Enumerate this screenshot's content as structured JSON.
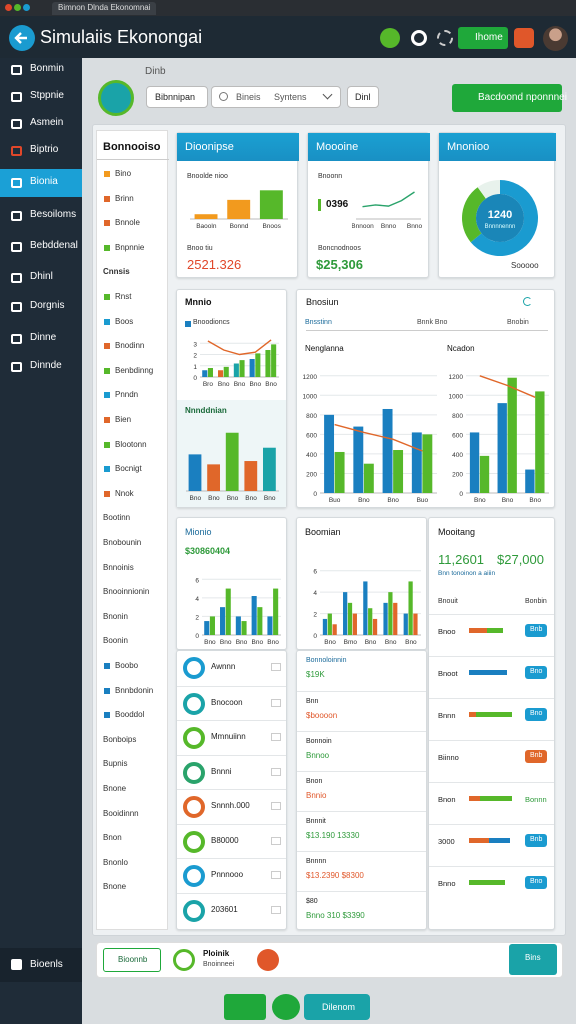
{
  "browser": {
    "tab": "Bimnon Dlnda Ekonomnai"
  },
  "header": {
    "title": "Simulaiis Ekonongai",
    "button": "Ihome"
  },
  "sidebar": {
    "items": [
      "Bonmin",
      "Stppnie",
      "Asmein",
      "Biptrio",
      "Bionia",
      "Besoiloms",
      "Bebddenal",
      "Dhinl",
      "Dorgnis",
      "Dinne",
      "Dinnde"
    ],
    "active_index": 4,
    "footer": "Bioenls"
  },
  "toolbar": {
    "caption": "Dinb",
    "tab": "Bibnnipan",
    "search": "Bineis",
    "select": "Syntens",
    "button": "Dinl",
    "action": "Bacdoond nponnnei"
  },
  "subnav": {
    "title": "Bonnooiso",
    "items": [
      "Bino",
      "Brinn",
      "Bnnole",
      "Bnpnnie",
      "Cnnsis",
      "Rnst",
      "Boos",
      "Bnodinn",
      "Benbdinng",
      "Pnndn",
      "Bien",
      "Blootonn",
      "Bocnigt",
      "Nnok",
      "Bootinn",
      "Bnobounin",
      "Bnnoinis",
      "Bnooinnionin",
      "Bnonin",
      "Boonin",
      "Boobo",
      "Bnnbdonin",
      "Booddol",
      "Bonboips",
      "Bupnis",
      "Bnone",
      "Booidinnn",
      "Bnon",
      "Bnonlo",
      "Bnone"
    ]
  },
  "kpi_cards": [
    {
      "title": "Dioonipse",
      "subtitle": "Bnoolde nioo",
      "chart": {
        "categories": [
          "Baooln",
          "Bonnd",
          "Bnoos"
        ],
        "series": [
          {
            "type": "bar",
            "colors": [
              "#f29a1e",
              "#f29a1e",
              "#56b82a"
            ],
            "values": [
              0.3,
              1.2,
              1.8
            ]
          }
        ]
      },
      "note": "Bnoo tiu",
      "value": "2521.326"
    },
    {
      "title": "Moooine",
      "subtitle": "Bnoonn",
      "figure": "0396",
      "chart": {
        "categories": [
          "Bnnoon",
          null,
          "Bnno",
          null,
          "Bnno"
        ],
        "series": [
          {
            "type": "line",
            "color": "#2aa36b",
            "values": [
              2,
              2.3,
              2.1,
              3,
              4.4
            ]
          }
        ]
      },
      "note": "Boncnodnoos",
      "value": "$25,306"
    },
    {
      "title": "Mnonioo",
      "donut": {
        "values": [
          64,
          26,
          10
        ],
        "colors": [
          "#1a9bd0",
          "#56b82a",
          "#e8f2ec"
        ]
      },
      "center": "1240",
      "center_note": "Bnnnnennn",
      "note": "Sooooo"
    }
  ],
  "mix_card": {
    "title": "Mnnio",
    "legend": "Bnoodioncs",
    "chart": {
      "ylim": [
        0,
        4
      ],
      "yticks": [
        0,
        1,
        2,
        3
      ],
      "categories": [
        "Bro",
        "Bno",
        "Bno",
        "Bno",
        "Bno"
      ],
      "series": [
        {
          "type": "bar",
          "colors": [
            "#1a7fc0",
            "#e0672a",
            "#1aa3a8",
            "#1a7fc0",
            "#56b82a"
          ],
          "values": [
            0.6,
            0.6,
            1.2,
            1.6,
            2.4
          ]
        },
        {
          "type": "bar",
          "color": "#56b82a",
          "values": [
            0.8,
            0.9,
            1.5,
            2.1,
            2.9
          ]
        },
        {
          "type": "line",
          "color": "#e0672a",
          "values": [
            3.2,
            2.4,
            2,
            2.2,
            3.3
          ]
        }
      ]
    },
    "title2": "Nnnddnian",
    "chart2": {
      "categories": [
        "Bno",
        "Bno",
        "Bno",
        "Bno",
        "Bno"
      ],
      "series": [
        {
          "type": "bar",
          "colors": [
            "#1a7fc0",
            "#e0672a",
            "#56b82a",
            "#e0672a",
            "#1aa3a8"
          ],
          "values": [
            2.2,
            1.6,
            3.5,
            1.8,
            2.6
          ]
        }
      ]
    }
  },
  "compare_card": {
    "title": "Bnosiun",
    "tabs": [
      "Bnsstinn",
      "Bnnk Bno",
      "Bnobin"
    ],
    "panels": [
      {
        "title": "Nenglanna",
        "chart": {
          "ylim": [
            0,
            1300
          ],
          "yticks": [
            0,
            200,
            400,
            600,
            800,
            1000,
            1200
          ],
          "categories": [
            "Buo",
            "Bno",
            "Bno",
            "Buo"
          ],
          "series": [
            {
              "type": "bar",
              "color": "#1a7fc0",
              "values": [
                800,
                680,
                860,
                620
              ]
            },
            {
              "type": "bar",
              "color": "#56b82a",
              "values": [
                420,
                300,
                440,
                600
              ]
            },
            {
              "type": "line",
              "color": "#e0672a",
              "values": [
                700,
                620,
                550,
                430
              ]
            }
          ]
        }
      },
      {
        "title": "Ncadon",
        "chart": {
          "ylim": [
            0,
            1300
          ],
          "yticks": [
            0,
            200,
            400,
            600,
            800,
            1000,
            1200
          ],
          "categories": [
            "Bno",
            "Bno",
            "Bno"
          ],
          "series": [
            {
              "type": "bar",
              "color": "#1a7fc0",
              "values": [
                620,
                920,
                240
              ]
            },
            {
              "type": "bar",
              "color": "#56b82a",
              "values": [
                380,
                1180,
                1040
              ]
            },
            {
              "type": "line",
              "color": "#e0672a",
              "values": [
                1200,
                1100,
                980
              ]
            }
          ]
        }
      }
    ]
  },
  "growth_card": {
    "title": "Mionio",
    "value": "$30860404",
    "chart": {
      "ylim": [
        0,
        7
      ],
      "yticks": [
        0,
        2,
        4,
        6
      ],
      "categories": [
        "Bno",
        "Bno",
        "Bno",
        "Bno",
        "Bno"
      ],
      "series": [
        {
          "type": "bar",
          "color": "#1a7fc0",
          "values": [
            1.5,
            3,
            2,
            4.2,
            2
          ]
        },
        {
          "type": "bar",
          "color": "#56b82a",
          "values": [
            2,
            5,
            1.5,
            3,
            5
          ]
        }
      ]
    }
  },
  "trend_card": {
    "title": "Boomian",
    "chart": {
      "ylim": [
        0,
        7
      ],
      "yticks": [
        0,
        2,
        4,
        6
      ],
      "categories": [
        "Bno",
        "Bmo",
        "Bno",
        "Bno",
        "Bno"
      ],
      "series": [
        {
          "type": "bar",
          "color": "#1a7fc0",
          "values": [
            1.5,
            4,
            5,
            3,
            2
          ]
        },
        {
          "type": "bar",
          "color": "#56b82a",
          "values": [
            2,
            3,
            2.5,
            4,
            5
          ]
        },
        {
          "type": "bar",
          "color": "#e0672a",
          "values": [
            1,
            2,
            1.5,
            3,
            2
          ]
        }
      ]
    }
  },
  "ledger": {
    "title": "Mooitang",
    "figure1": "11,2601",
    "figure2": "$27,000",
    "subtitle": "Bnn tonoinon a aiiin",
    "head": [
      "Bnouit",
      "Bonbin"
    ],
    "rows": [
      {
        "label": "Bnoo",
        "progress": [
          40,
          35
        ],
        "colors": [
          "#e0672a",
          "#56b82a"
        ],
        "badge": "Bnb",
        "badge_color": "#1a9bd0"
      },
      {
        "label": "Bnoot",
        "progress": [
          85
        ],
        "colors": [
          "#1a7fc0"
        ],
        "badge": "Bno",
        "badge_color": "#1a9bd0"
      },
      {
        "label": "Bnnn",
        "progress": [
          15,
          80
        ],
        "colors": [
          "#e0672a",
          "#56b82a"
        ],
        "badge": "Bno",
        "badge_color": "#1a9bd0"
      },
      {
        "label": "Biinno",
        "progress": [],
        "colors": [],
        "badge": "Bnb",
        "badge_color": "#e0672a"
      },
      {
        "label": "Bnon",
        "progress": [
          25,
          70
        ],
        "colors": [
          "#e0672a",
          "#56b82a"
        ],
        "amount": "Bonnn"
      },
      {
        "label": "3000",
        "progress": [
          45,
          45
        ],
        "colors": [
          "#e0672a",
          "#1a7fc0"
        ],
        "badge": "Bnb",
        "badge_color": "#1a9bd0"
      },
      {
        "label": "Bnno",
        "progress": [
          80
        ],
        "colors": [
          "#56b82a"
        ],
        "badge": "Bno",
        "badge_color": "#1a9bd0"
      }
    ]
  },
  "accounts": {
    "items": [
      {
        "label": "Awnnn",
        "color": "#1a9bd0"
      },
      {
        "label": "Bnocoon",
        "color": "#1aa3a8"
      },
      {
        "label": "Mmnuiinn",
        "color": "#56b82a"
      },
      {
        "label": "Bnnni",
        "color": "#2aa36b"
      },
      {
        "label": "Snnnh.000",
        "color": "#e0672a"
      },
      {
        "label": "B80000",
        "color": "#56b82a"
      },
      {
        "label": "Pnnnooo",
        "color": "#1a9bd0"
      },
      {
        "label": "203601",
        "color": "#1aa3a8"
      }
    ]
  },
  "entries": {
    "rows": [
      {
        "label": "Bonnoloinnin",
        "value": "$19K"
      },
      {
        "label": "Bnn",
        "value": "$boooon"
      },
      {
        "label": "Bonnoin",
        "value": "Bnnoo"
      },
      {
        "label": "Bnon",
        "value": "Bnnio"
      },
      {
        "label": "Bnnnit",
        "value": "$13.190 13330"
      },
      {
        "label": "Bnnnn",
        "value": "$13.2390 $8300"
      },
      {
        "label": "$80",
        "value": "Bnno 310 $3390"
      }
    ]
  },
  "footer": {
    "button": "Bioonnb",
    "name": "Ploinik",
    "detail": "Bnoinneei",
    "action": "Bins"
  },
  "dock": {
    "button": "Dilenom"
  }
}
